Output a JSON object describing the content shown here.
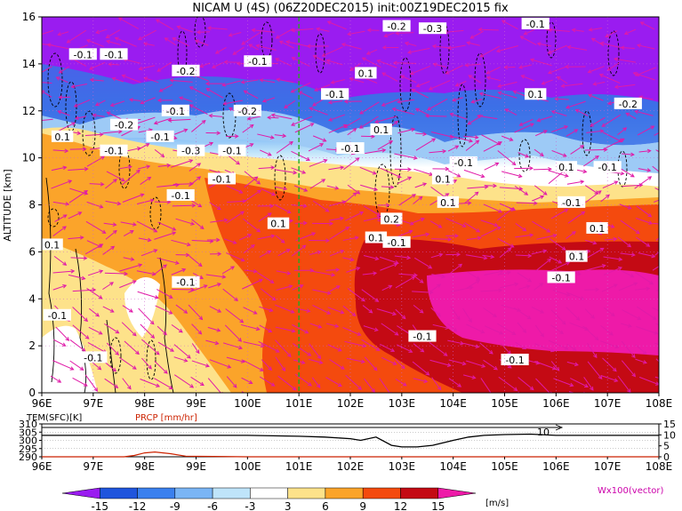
{
  "chart_data": {
    "type": "heatmap",
    "title": "NICAM U (4S) (06Z20DEC2015) init:00Z19DEC2015 fix",
    "ylabel": "ALTITUDE [km]",
    "x_ticks": [
      "96E",
      "97E",
      "98E",
      "99E",
      "100E",
      "101E",
      "102E",
      "103E",
      "104E",
      "105E",
      "106E",
      "107E",
      "108E"
    ],
    "xlim": [
      96,
      108
    ],
    "y_ticks": [
      "0",
      "2",
      "4",
      "6",
      "8",
      "10",
      "12",
      "14",
      "16"
    ],
    "ylim": [
      0,
      16
    ],
    "marker_line_lon": 101,
    "contour_labels": [
      {
        "text": "-0.2",
        "lon": 102.9,
        "alt": 15.6
      },
      {
        "text": "-0.3",
        "lon": 103.6,
        "alt": 15.5
      },
      {
        "text": "-0.1",
        "lon": 105.6,
        "alt": 15.7
      },
      {
        "text": "-0.1",
        "lon": 96.8,
        "alt": 14.4
      },
      {
        "text": "-0.1",
        "lon": 97.4,
        "alt": 14.4
      },
      {
        "text": "-0.1",
        "lon": 100.2,
        "alt": 14.1
      },
      {
        "text": "-0.2",
        "lon": 98.8,
        "alt": 13.7
      },
      {
        "text": "0.1",
        "lon": 102.3,
        "alt": 13.6
      },
      {
        "text": "-0.1",
        "lon": 101.7,
        "alt": 12.7
      },
      {
        "text": "0.1",
        "lon": 105.6,
        "alt": 12.7
      },
      {
        "text": "-0.2",
        "lon": 100.0,
        "alt": 12.0
      },
      {
        "text": "-0.1",
        "lon": 98.6,
        "alt": 12.0
      },
      {
        "text": "-0.2",
        "lon": 107.4,
        "alt": 12.3
      },
      {
        "text": "-0.2",
        "lon": 97.6,
        "alt": 11.4
      },
      {
        "text": "0.1",
        "lon": 102.6,
        "alt": 11.2
      },
      {
        "text": "-0.1",
        "lon": 98.3,
        "alt": 10.9
      },
      {
        "text": "-0.1",
        "lon": 102.0,
        "alt": 10.4
      },
      {
        "text": "0.1",
        "lon": 96.4,
        "alt": 10.9
      },
      {
        "text": "-0.1",
        "lon": 97.4,
        "alt": 10.3
      },
      {
        "text": "-0.3",
        "lon": 98.9,
        "alt": 10.3
      },
      {
        "text": "-0.1",
        "lon": 99.7,
        "alt": 10.3
      },
      {
        "text": "-0.1",
        "lon": 104.2,
        "alt": 9.8
      },
      {
        "text": "0.1",
        "lon": 106.2,
        "alt": 9.6
      },
      {
        "text": "-0.1",
        "lon": 107.0,
        "alt": 9.6
      },
      {
        "text": "-0.1",
        "lon": 99.5,
        "alt": 9.1
      },
      {
        "text": "0.1",
        "lon": 103.8,
        "alt": 9.1
      },
      {
        "text": "-0.1",
        "lon": 98.7,
        "alt": 8.4
      },
      {
        "text": "0.1",
        "lon": 103.9,
        "alt": 8.1
      },
      {
        "text": "-0.1",
        "lon": 106.3,
        "alt": 8.1
      },
      {
        "text": "0.1",
        "lon": 100.6,
        "alt": 7.2
      },
      {
        "text": "0.2",
        "lon": 102.8,
        "alt": 7.4
      },
      {
        "text": "0.1",
        "lon": 106.8,
        "alt": 7.0
      },
      {
        "text": "0.1",
        "lon": 102.5,
        "alt": 6.6
      },
      {
        "text": "-0.1",
        "lon": 102.9,
        "alt": 6.4
      },
      {
        "text": "0.1",
        "lon": 106.4,
        "alt": 5.8
      },
      {
        "text": "0.1",
        "lon": 96.2,
        "alt": 6.3
      },
      {
        "text": "-0.1",
        "lon": 106.1,
        "alt": 4.9
      },
      {
        "text": "-0.1",
        "lon": 98.8,
        "alt": 4.7
      },
      {
        "text": "-0.1",
        "lon": 96.3,
        "alt": 3.3
      },
      {
        "text": "-0.1",
        "lon": 103.4,
        "alt": 2.4
      },
      {
        "text": "-0.1",
        "lon": 97.0,
        "alt": 1.5
      },
      {
        "text": "-0.1",
        "lon": 105.2,
        "alt": 1.4
      }
    ],
    "sub_panel": {
      "label_tem": "TEM(SFC)[K]",
      "label_prcp": "PRCP [mm/hr]",
      "left_ticks": [
        "310",
        "305",
        "300",
        "295",
        "290"
      ],
      "right_ticks": [
        "15",
        "10",
        "5",
        "0"
      ],
      "annotation": "10",
      "tem_series": {
        "lon": [
          96,
          97,
          98,
          99,
          100,
          101,
          101.5,
          102,
          102.2,
          102.5,
          102.8,
          103,
          103.3,
          103.6,
          104,
          104.3,
          104.6,
          105,
          105.5,
          106,
          106.5,
          107,
          108
        ],
        "values": [
          303,
          303,
          303,
          303,
          303,
          302.5,
          302,
          301,
          300,
          302,
          297,
          296,
          296,
          297,
          300,
          302,
          303,
          303.5,
          303.8,
          303,
          303,
          303,
          303
        ]
      },
      "prcp_series": {
        "lon": [
          96,
          97.6,
          97.8,
          98,
          98.2,
          98.5,
          98.8,
          100,
          102,
          103,
          104,
          106,
          108
        ],
        "values": [
          0,
          0,
          0.6,
          1.8,
          2.2,
          1.4,
          0.3,
          0,
          0,
          0,
          0,
          0,
          0
        ]
      }
    },
    "colorbar": {
      "labels": [
        "-15",
        "-12",
        "-9",
        "-6",
        "-3",
        "3",
        "6",
        "9",
        "12",
        "15"
      ],
      "unit": "[m/s]",
      "colors": [
        "#9a1cf0",
        "#1f55dd",
        "#3a80ee",
        "#7ab5f5",
        "#bfe4fa",
        "#ffffff",
        "#fde28a",
        "#fba42a",
        "#f44a0e",
        "#c40a14",
        "#ee1aa8"
      ]
    },
    "vector_label": "Wx100(vector)"
  }
}
